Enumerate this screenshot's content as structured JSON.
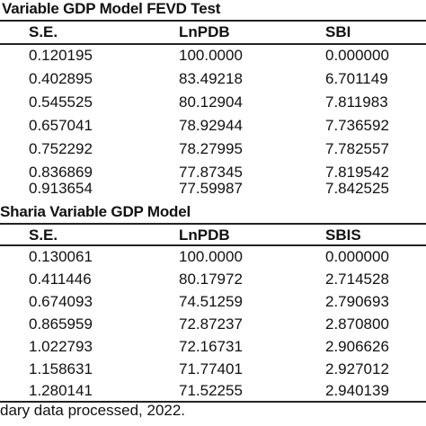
{
  "table1": {
    "caption": "Variable GDP Model FEVD Test",
    "headers": [
      "S.E.",
      "LnPDB",
      "SBI"
    ],
    "rows": [
      [
        "0.120195",
        "100.0000",
        "0.000000"
      ],
      [
        "0.402895",
        "83.49218",
        "6.701149"
      ],
      [
        "0.545525",
        "80.12904",
        "7.811983"
      ],
      [
        "0.657041",
        "78.92944",
        "7.736592"
      ],
      [
        "0.752292",
        "78.27995",
        "7.782557"
      ],
      [
        "0.836869",
        "77.87345",
        "7.819542"
      ],
      [
        "0.913654",
        "77.59987",
        "7.842525"
      ]
    ]
  },
  "table2": {
    "caption": "Sharia Variable GDP Model",
    "headers": [
      "S.E.",
      "LnPDB",
      "SBIS"
    ],
    "rows": [
      [
        "0.130061",
        "100.0000",
        "0.000000"
      ],
      [
        "0.411446",
        "80.17972",
        "2.714528"
      ],
      [
        "0.674093",
        "74.51259",
        "2.790693"
      ],
      [
        "0.865959",
        "72.87237",
        "2.870800"
      ],
      [
        "1.022793",
        "72.16731",
        "2.906626"
      ],
      [
        "1.158631",
        "71.77401",
        "2.927012"
      ],
      [
        "1.280141",
        "71.52255",
        "2.940139"
      ]
    ]
  },
  "source_note": "dary data processed, 2022."
}
